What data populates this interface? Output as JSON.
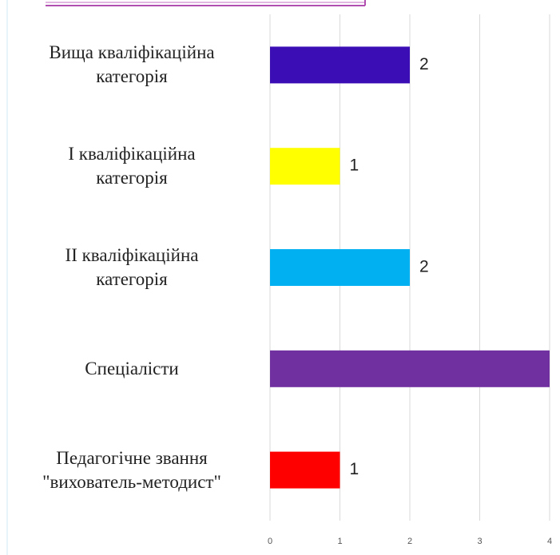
{
  "chart_data": {
    "type": "barh",
    "categories": [
      "Вища кваліфікаційна\nкатегорія",
      "І кваліфікаційна\nкатегорія",
      "ІІ кваліфікаційна\nкатегорія",
      "Спеціалісти",
      "Педагогічне звання\n\"вихователь-методист\""
    ],
    "values": [
      2,
      1,
      2,
      4,
      1
    ],
    "value_labels": [
      "2",
      "1",
      "2",
      null,
      "1"
    ],
    "colors": [
      "#3a0db5",
      "#ffff00",
      "#00b0f0",
      "#7030a0",
      "#ff0000"
    ],
    "xlim": [
      0,
      4
    ],
    "xticks": [
      0,
      1,
      2,
      3,
      4
    ],
    "grid": true
  }
}
